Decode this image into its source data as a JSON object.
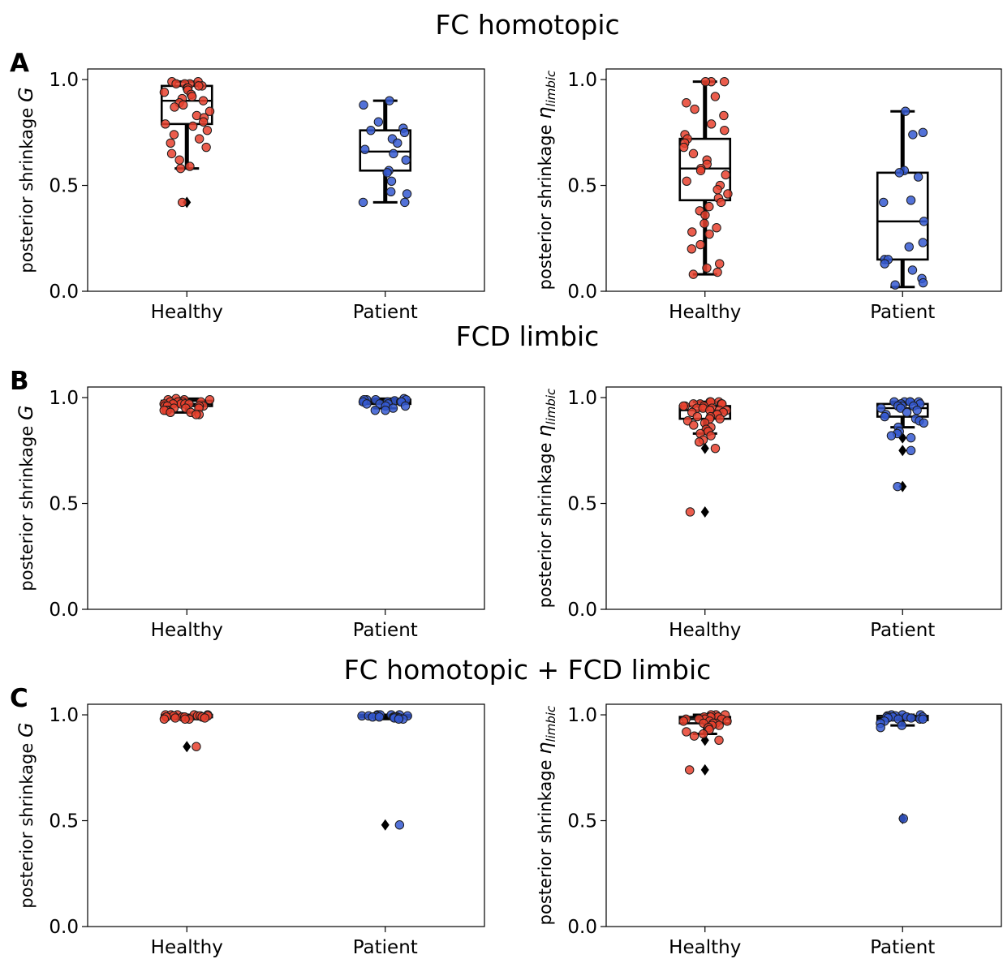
{
  "rows": [
    {
      "title": "FC homotopic",
      "letter": "A",
      "panels": [
        {
          "ylabel_text": "posterior shrinkage ",
          "ylabel_symbol": "G",
          "ylabel_sub": "",
          "ylim": [
            0,
            1.05
          ],
          "yticks": [
            "0.0",
            "0.5",
            "1.0"
          ],
          "categories": [
            "Healthy",
            "Patient"
          ],
          "series": [
            {
              "name": "Healthy",
              "color": "#e8412e",
              "box": {
                "q1": 0.79,
                "median": 0.9,
                "q3": 0.97,
                "whisker_low": 0.58,
                "whisker_high": 0.99
              },
              "outliers": [
                0.42
              ],
              "points": [
                0.99,
                0.99,
                0.98,
                0.98,
                0.98,
                0.97,
                0.97,
                0.96,
                0.96,
                0.95,
                0.94,
                0.93,
                0.92,
                0.91,
                0.9,
                0.89,
                0.88,
                0.87,
                0.85,
                0.83,
                0.82,
                0.8,
                0.79,
                0.78,
                0.76,
                0.74,
                0.72,
                0.7,
                0.68,
                0.65,
                0.62,
                0.59,
                0.58,
                0.42
              ]
            },
            {
              "name": "Patient",
              "color": "#3559d1",
              "box": {
                "q1": 0.57,
                "median": 0.66,
                "q3": 0.76,
                "whisker_low": 0.42,
                "whisker_high": 0.9
              },
              "outliers": [],
              "points": [
                0.9,
                0.88,
                0.8,
                0.77,
                0.76,
                0.75,
                0.72,
                0.7,
                0.67,
                0.65,
                0.62,
                0.57,
                0.56,
                0.52,
                0.47,
                0.46,
                0.42,
                0.42
              ]
            }
          ]
        },
        {
          "ylabel_text": "posterior shrinkage ",
          "ylabel_symbol": "η",
          "ylabel_sub": "limbic",
          "ylim": [
            0,
            1.05
          ],
          "yticks": [
            "0.0",
            "0.5",
            "1.0"
          ],
          "categories": [
            "Healthy",
            "Patient"
          ],
          "series": [
            {
              "name": "Healthy",
              "color": "#e8412e",
              "box": {
                "q1": 0.43,
                "median": 0.58,
                "q3": 0.72,
                "whisker_low": 0.08,
                "whisker_high": 0.99
              },
              "outliers": [],
              "points": [
                0.99,
                0.99,
                0.99,
                0.92,
                0.89,
                0.86,
                0.83,
                0.79,
                0.76,
                0.74,
                0.72,
                0.7,
                0.68,
                0.65,
                0.62,
                0.6,
                0.58,
                0.57,
                0.55,
                0.52,
                0.5,
                0.48,
                0.46,
                0.44,
                0.42,
                0.4,
                0.38,
                0.36,
                0.32,
                0.3,
                0.28,
                0.27,
                0.22,
                0.2,
                0.13,
                0.11,
                0.09,
                0.08
              ]
            },
            {
              "name": "Patient",
              "color": "#3559d1",
              "box": {
                "q1": 0.15,
                "median": 0.33,
                "q3": 0.56,
                "whisker_low": 0.02,
                "whisker_high": 0.85
              },
              "outliers": [],
              "points": [
                0.85,
                0.75,
                0.74,
                0.57,
                0.56,
                0.54,
                0.43,
                0.42,
                0.33,
                0.23,
                0.21,
                0.15,
                0.15,
                0.13,
                0.1,
                0.06,
                0.04,
                0.03
              ]
            }
          ]
        }
      ]
    },
    {
      "title": "FCD limbic",
      "letter": "B",
      "panels": [
        {
          "ylabel_text": "posterior shrinkage ",
          "ylabel_symbol": "G",
          "ylabel_sub": "",
          "ylim": [
            0,
            1.05
          ],
          "yticks": [
            "0.0",
            "0.5",
            "1.0"
          ],
          "categories": [
            "Healthy",
            "Patient"
          ],
          "series": [
            {
              "name": "Healthy",
              "color": "#e8412e",
              "box": {
                "q1": 0.96,
                "median": 0.97,
                "q3": 0.985,
                "whisker_low": 0.93,
                "whisker_high": 0.995
              },
              "outliers": [],
              "points": [
                0.995,
                0.99,
                0.99,
                0.99,
                0.98,
                0.98,
                0.98,
                0.98,
                0.97,
                0.97,
                0.97,
                0.97,
                0.97,
                0.96,
                0.96,
                0.96,
                0.96,
                0.95,
                0.95,
                0.95,
                0.94,
                0.94,
                0.94,
                0.93,
                0.93,
                0.92,
                0.92
              ]
            },
            {
              "name": "Patient",
              "color": "#3559d1",
              "box": {
                "q1": 0.97,
                "median": 0.98,
                "q3": 0.99,
                "whisker_low": 0.95,
                "whisker_high": 0.995
              },
              "outliers": [],
              "points": [
                0.995,
                0.99,
                0.99,
                0.99,
                0.99,
                0.985,
                0.98,
                0.98,
                0.98,
                0.98,
                0.97,
                0.97,
                0.97,
                0.96,
                0.96,
                0.95,
                0.94,
                0.94
              ]
            }
          ]
        },
        {
          "ylabel_text": "posterior shrinkage ",
          "ylabel_symbol": "η",
          "ylabel_sub": "limbic",
          "ylim": [
            0,
            1.05
          ],
          "yticks": [
            "0.0",
            "0.5",
            "1.0"
          ],
          "categories": [
            "Healthy",
            "Patient"
          ],
          "series": [
            {
              "name": "Healthy",
              "color": "#e8412e",
              "box": {
                "q1": 0.9,
                "median": 0.94,
                "q3": 0.96,
                "whisker_low": 0.83,
                "whisker_high": 0.98
              },
              "outliers": [
                0.76,
                0.46
              ],
              "points": [
                0.98,
                0.98,
                0.98,
                0.97,
                0.97,
                0.97,
                0.97,
                0.96,
                0.96,
                0.96,
                0.95,
                0.95,
                0.95,
                0.94,
                0.94,
                0.94,
                0.93,
                0.93,
                0.92,
                0.92,
                0.91,
                0.91,
                0.9,
                0.9,
                0.89,
                0.88,
                0.87,
                0.86,
                0.85,
                0.84,
                0.83,
                0.82,
                0.8,
                0.79,
                0.76,
                0.46
              ]
            },
            {
              "name": "Patient",
              "color": "#3559d1",
              "box": {
                "q1": 0.91,
                "median": 0.95,
                "q3": 0.97,
                "whisker_low": 0.86,
                "whisker_high": 0.98
              },
              "outliers": [
                0.81,
                0.75,
                0.58
              ],
              "points": [
                0.98,
                0.98,
                0.98,
                0.98,
                0.98,
                0.97,
                0.97,
                0.97,
                0.96,
                0.96,
                0.96,
                0.95,
                0.95,
                0.94,
                0.93,
                0.92,
                0.91,
                0.9,
                0.89,
                0.88,
                0.86,
                0.84,
                0.83,
                0.82,
                0.81,
                0.75,
                0.58
              ]
            }
          ]
        }
      ]
    },
    {
      "title": "FC homotopic + FCD limbic",
      "letter": "C",
      "panels": [
        {
          "ylabel_text": "posterior shrinkage ",
          "ylabel_symbol": "G",
          "ylabel_sub": "",
          "ylim": [
            0,
            1.05
          ],
          "yticks": [
            "0.0",
            "0.5",
            "1.0"
          ],
          "categories": [
            "Healthy",
            "Patient"
          ],
          "series": [
            {
              "name": "Healthy",
              "color": "#e8412e",
              "box": {
                "q1": 0.99,
                "median": 0.995,
                "q3": 1.0,
                "whisker_low": 0.98,
                "whisker_high": 1.0
              },
              "outliers": [
                0.85
              ],
              "points": [
                1.0,
                1.0,
                1.0,
                1.0,
                1.0,
                0.995,
                0.995,
                0.995,
                0.995,
                0.99,
                0.99,
                0.99,
                0.99,
                0.99,
                0.99,
                0.985,
                0.985,
                0.98,
                0.98,
                0.98,
                0.85
              ]
            },
            {
              "name": "Patient",
              "color": "#3559d1",
              "box": {
                "q1": 0.99,
                "median": 0.995,
                "q3": 1.0,
                "whisker_low": 0.98,
                "whisker_high": 1.0
              },
              "outliers": [
                0.48
              ],
              "points": [
                1.0,
                1.0,
                1.0,
                1.0,
                0.995,
                0.995,
                0.995,
                0.995,
                0.99,
                0.99,
                0.99,
                0.99,
                0.99,
                0.985,
                0.985,
                0.98,
                0.98,
                0.48
              ]
            }
          ]
        },
        {
          "ylabel_text": "posterior shrinkage ",
          "ylabel_symbol": "η",
          "ylabel_sub": "limbic",
          "ylim": [
            0,
            1.05
          ],
          "yticks": [
            "0.0",
            "0.5",
            "1.0"
          ],
          "categories": [
            "Healthy",
            "Patient"
          ],
          "series": [
            {
              "name": "Healthy",
              "color": "#e8412e",
              "box": {
                "q1": 0.96,
                "median": 0.98,
                "q3": 0.99,
                "whisker_low": 0.91,
                "whisker_high": 1.0
              },
              "outliers": [
                0.88,
                0.74
              ],
              "points": [
                1.0,
                1.0,
                1.0,
                0.99,
                0.99,
                0.99,
                0.99,
                0.98,
                0.98,
                0.98,
                0.98,
                0.97,
                0.97,
                0.97,
                0.96,
                0.96,
                0.96,
                0.95,
                0.95,
                0.94,
                0.93,
                0.92,
                0.91,
                0.9,
                0.88,
                0.74
              ]
            },
            {
              "name": "Patient",
              "color": "#3559d1",
              "box": {
                "q1": 0.975,
                "median": 0.985,
                "q3": 0.995,
                "whisker_low": 0.95,
                "whisker_high": 1.0
              },
              "outliers": [
                0.51
              ],
              "points": [
                1.0,
                1.0,
                1.0,
                0.995,
                0.995,
                0.99,
                0.99,
                0.99,
                0.99,
                0.985,
                0.985,
                0.98,
                0.98,
                0.98,
                0.97,
                0.96,
                0.95,
                0.94,
                0.51
              ]
            }
          ]
        }
      ]
    }
  ]
}
